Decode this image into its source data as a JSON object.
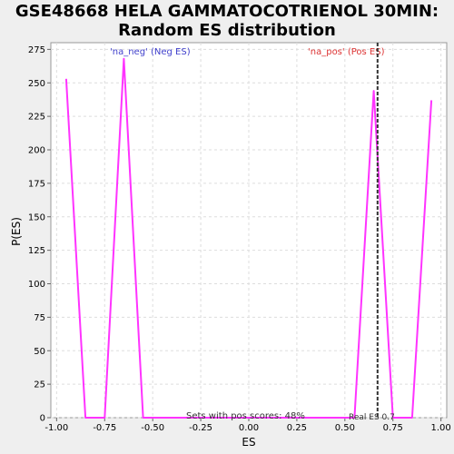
{
  "title_lines": [
    "GSE48668 HELA GAMMATOCOTRIENOL 30MIN:",
    "Random ES distribution"
  ],
  "chart_data": {
    "type": "line",
    "title": "GSE48668 HELA GAMMATOCOTRIENOL 30MIN: Random ES distribution",
    "xlabel": "ES",
    "ylabel": "P(ES)",
    "xlim": [
      -1.03,
      1.03
    ],
    "ylim": [
      0,
      280
    ],
    "xticks": [
      -1.0,
      -0.75,
      -0.5,
      -0.25,
      0.0,
      0.25,
      0.5,
      0.75,
      1.0
    ],
    "xtick_labels": [
      "-1.00",
      "-0.75",
      "-0.50",
      "-0.25",
      "0.00",
      "0.25",
      "0.50",
      "0.75",
      "1.00"
    ],
    "yticks": [
      0,
      25,
      50,
      75,
      100,
      125,
      150,
      175,
      200,
      225,
      250,
      275
    ],
    "grid": true,
    "series": [
      {
        "color": "#ff33ff",
        "x": [
          -0.95,
          -0.85,
          -0.75,
          -0.65,
          -0.55,
          0.55,
          0.65,
          0.75,
          0.85,
          0.95
        ],
        "y": [
          253,
          0,
          0,
          268,
          0,
          0,
          244,
          0,
          0,
          237
        ]
      }
    ],
    "vline": {
      "x": 0.67,
      "color": "#333333",
      "style": "dashed"
    },
    "annotations": {
      "neg_label": "'na_neg' (Neg ES)",
      "neg_color": "#4040cc",
      "pos_label": "'na_pos' (Pos ES)",
      "pos_color": "#dd3333",
      "sets_text": "Sets with pos scores: 48%",
      "real_es_text": "Real ES 0.7"
    }
  }
}
